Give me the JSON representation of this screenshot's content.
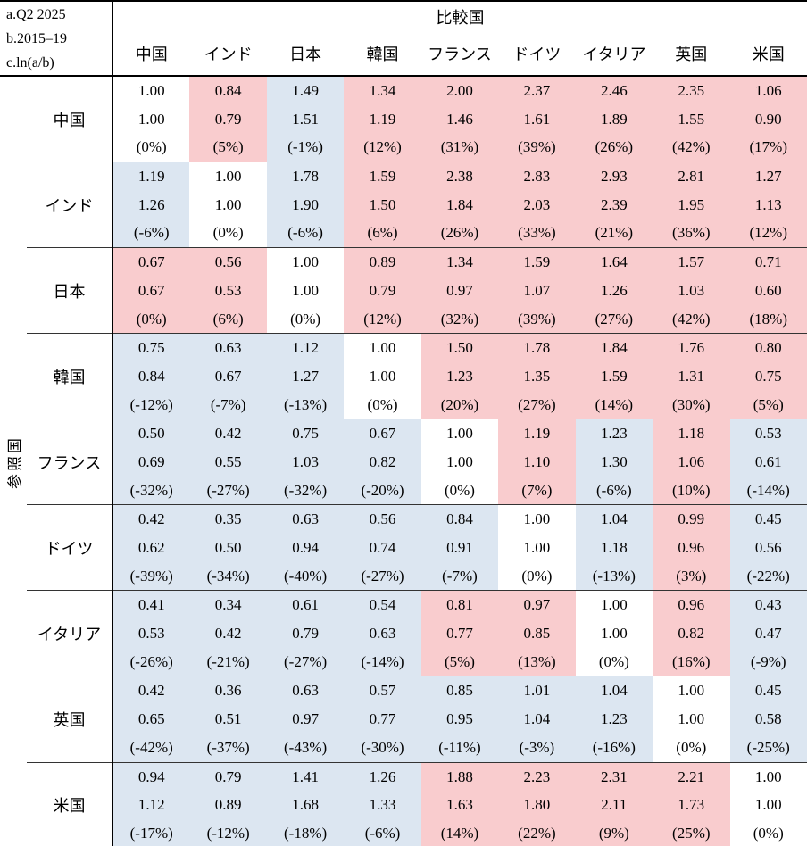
{
  "header": {
    "corner_lines": [
      "a.Q2 2025",
      "b.2015–19",
      "c.ln(a/b)"
    ],
    "comparison_label": "比較国",
    "reference_label": "参照国",
    "columns": [
      "中国",
      "インド",
      "日本",
      "韓国",
      "フランス",
      "ドイツ",
      "イタリア",
      "英国",
      "米国"
    ]
  },
  "colors": {
    "positive": "#F9CCCE",
    "negative": "#DCE6F1",
    "neutral": "#FFFFFF",
    "border": "#000000"
  },
  "rows": [
    {
      "label": "中国",
      "cells": [
        {
          "a": "1.00",
          "b": "1.00",
          "c": "(0%)",
          "bg": "w"
        },
        {
          "a": "0.84",
          "b": "0.79",
          "c": "(5%)",
          "bg": "p"
        },
        {
          "a": "1.49",
          "b": "1.51",
          "c": "(-1%)",
          "bg": "n"
        },
        {
          "a": "1.34",
          "b": "1.19",
          "c": "(12%)",
          "bg": "p"
        },
        {
          "a": "2.00",
          "b": "1.46",
          "c": "(31%)",
          "bg": "p"
        },
        {
          "a": "2.37",
          "b": "1.61",
          "c": "(39%)",
          "bg": "p"
        },
        {
          "a": "2.46",
          "b": "1.89",
          "c": "(26%)",
          "bg": "p"
        },
        {
          "a": "2.35",
          "b": "1.55",
          "c": "(42%)",
          "bg": "p"
        },
        {
          "a": "1.06",
          "b": "0.90",
          "c": "(17%)",
          "bg": "p"
        }
      ]
    },
    {
      "label": "インド",
      "cells": [
        {
          "a": "1.19",
          "b": "1.26",
          "c": "(-6%)",
          "bg": "n"
        },
        {
          "a": "1.00",
          "b": "1.00",
          "c": "(0%)",
          "bg": "w"
        },
        {
          "a": "1.78",
          "b": "1.90",
          "c": "(-6%)",
          "bg": "n"
        },
        {
          "a": "1.59",
          "b": "1.50",
          "c": "(6%)",
          "bg": "p"
        },
        {
          "a": "2.38",
          "b": "1.84",
          "c": "(26%)",
          "bg": "p"
        },
        {
          "a": "2.83",
          "b": "2.03",
          "c": "(33%)",
          "bg": "p"
        },
        {
          "a": "2.93",
          "b": "2.39",
          "c": "(21%)",
          "bg": "p"
        },
        {
          "a": "2.81",
          "b": "1.95",
          "c": "(36%)",
          "bg": "p"
        },
        {
          "a": "1.27",
          "b": "1.13",
          "c": "(12%)",
          "bg": "p"
        }
      ]
    },
    {
      "label": "日本",
      "cells": [
        {
          "a": "0.67",
          "b": "0.67",
          "c": "(0%)",
          "bg": "p"
        },
        {
          "a": "0.56",
          "b": "0.53",
          "c": "(6%)",
          "bg": "p"
        },
        {
          "a": "1.00",
          "b": "1.00",
          "c": "(0%)",
          "bg": "w"
        },
        {
          "a": "0.89",
          "b": "0.79",
          "c": "(12%)",
          "bg": "p"
        },
        {
          "a": "1.34",
          "b": "0.97",
          "c": "(32%)",
          "bg": "p"
        },
        {
          "a": "1.59",
          "b": "1.07",
          "c": "(39%)",
          "bg": "p"
        },
        {
          "a": "1.64",
          "b": "1.26",
          "c": "(27%)",
          "bg": "p"
        },
        {
          "a": "1.57",
          "b": "1.03",
          "c": "(42%)",
          "bg": "p"
        },
        {
          "a": "0.71",
          "b": "0.60",
          "c": "(18%)",
          "bg": "p"
        }
      ]
    },
    {
      "label": "韓国",
      "cells": [
        {
          "a": "0.75",
          "b": "0.84",
          "c": "(-12%)",
          "bg": "n"
        },
        {
          "a": "0.63",
          "b": "0.67",
          "c": "(-7%)",
          "bg": "n"
        },
        {
          "a": "1.12",
          "b": "1.27",
          "c": "(-13%)",
          "bg": "n"
        },
        {
          "a": "1.00",
          "b": "1.00",
          "c": "(0%)",
          "bg": "w"
        },
        {
          "a": "1.50",
          "b": "1.23",
          "c": "(20%)",
          "bg": "p"
        },
        {
          "a": "1.78",
          "b": "1.35",
          "c": "(27%)",
          "bg": "p"
        },
        {
          "a": "1.84",
          "b": "1.59",
          "c": "(14%)",
          "bg": "p"
        },
        {
          "a": "1.76",
          "b": "1.31",
          "c": "(30%)",
          "bg": "p"
        },
        {
          "a": "0.80",
          "b": "0.75",
          "c": "(5%)",
          "bg": "p"
        }
      ]
    },
    {
      "label": "フランス",
      "cells": [
        {
          "a": "0.50",
          "b": "0.69",
          "c": "(-32%)",
          "bg": "n"
        },
        {
          "a": "0.42",
          "b": "0.55",
          "c": "(-27%)",
          "bg": "n"
        },
        {
          "a": "0.75",
          "b": "1.03",
          "c": "(-32%)",
          "bg": "n"
        },
        {
          "a": "0.67",
          "b": "0.82",
          "c": "(-20%)",
          "bg": "n"
        },
        {
          "a": "1.00",
          "b": "1.00",
          "c": "(0%)",
          "bg": "w"
        },
        {
          "a": "1.19",
          "b": "1.10",
          "c": "(7%)",
          "bg": "p"
        },
        {
          "a": "1.23",
          "b": "1.30",
          "c": "(-6%)",
          "bg": "n"
        },
        {
          "a": "1.18",
          "b": "1.06",
          "c": "(10%)",
          "bg": "p"
        },
        {
          "a": "0.53",
          "b": "0.61",
          "c": "(-14%)",
          "bg": "n"
        }
      ]
    },
    {
      "label": "ドイツ",
      "cells": [
        {
          "a": "0.42",
          "b": "0.62",
          "c": "(-39%)",
          "bg": "n"
        },
        {
          "a": "0.35",
          "b": "0.50",
          "c": "(-34%)",
          "bg": "n"
        },
        {
          "a": "0.63",
          "b": "0.94",
          "c": "(-40%)",
          "bg": "n"
        },
        {
          "a": "0.56",
          "b": "0.74",
          "c": "(-27%)",
          "bg": "n"
        },
        {
          "a": "0.84",
          "b": "0.91",
          "c": "(-7%)",
          "bg": "n"
        },
        {
          "a": "1.00",
          "b": "1.00",
          "c": "(0%)",
          "bg": "w"
        },
        {
          "a": "1.04",
          "b": "1.18",
          "c": "(-13%)",
          "bg": "n"
        },
        {
          "a": "0.99",
          "b": "0.96",
          "c": "(3%)",
          "bg": "p"
        },
        {
          "a": "0.45",
          "b": "0.56",
          "c": "(-22%)",
          "bg": "n"
        }
      ]
    },
    {
      "label": "イタリア",
      "cells": [
        {
          "a": "0.41",
          "b": "0.53",
          "c": "(-26%)",
          "bg": "n"
        },
        {
          "a": "0.34",
          "b": "0.42",
          "c": "(-21%)",
          "bg": "n"
        },
        {
          "a": "0.61",
          "b": "0.79",
          "c": "(-27%)",
          "bg": "n"
        },
        {
          "a": "0.54",
          "b": "0.63",
          "c": "(-14%)",
          "bg": "n"
        },
        {
          "a": "0.81",
          "b": "0.77",
          "c": "(5%)",
          "bg": "p"
        },
        {
          "a": "0.97",
          "b": "0.85",
          "c": "(13%)",
          "bg": "p"
        },
        {
          "a": "1.00",
          "b": "1.00",
          "c": "(0%)",
          "bg": "w"
        },
        {
          "a": "0.96",
          "b": "0.82",
          "c": "(16%)",
          "bg": "p"
        },
        {
          "a": "0.43",
          "b": "0.47",
          "c": "(-9%)",
          "bg": "n"
        }
      ]
    },
    {
      "label": "英国",
      "cells": [
        {
          "a": "0.42",
          "b": "0.65",
          "c": "(-42%)",
          "bg": "n"
        },
        {
          "a": "0.36",
          "b": "0.51",
          "c": "(-37%)",
          "bg": "n"
        },
        {
          "a": "0.63",
          "b": "0.97",
          "c": "(-43%)",
          "bg": "n"
        },
        {
          "a": "0.57",
          "b": "0.77",
          "c": "(-30%)",
          "bg": "n"
        },
        {
          "a": "0.85",
          "b": "0.95",
          "c": "(-11%)",
          "bg": "n"
        },
        {
          "a": "1.01",
          "b": "1.04",
          "c": "(-3%)",
          "bg": "n"
        },
        {
          "a": "1.04",
          "b": "1.23",
          "c": "(-16%)",
          "bg": "n"
        },
        {
          "a": "1.00",
          "b": "1.00",
          "c": "(0%)",
          "bg": "w"
        },
        {
          "a": "0.45",
          "b": "0.58",
          "c": "(-25%)",
          "bg": "n"
        }
      ]
    },
    {
      "label": "米国",
      "cells": [
        {
          "a": "0.94",
          "b": "1.12",
          "c": "(-17%)",
          "bg": "n"
        },
        {
          "a": "0.79",
          "b": "0.89",
          "c": "(-12%)",
          "bg": "n"
        },
        {
          "a": "1.41",
          "b": "1.68",
          "c": "(-18%)",
          "bg": "n"
        },
        {
          "a": "1.26",
          "b": "1.33",
          "c": "(-6%)",
          "bg": "n"
        },
        {
          "a": "1.88",
          "b": "1.63",
          "c": "(14%)",
          "bg": "p"
        },
        {
          "a": "2.23",
          "b": "1.80",
          "c": "(22%)",
          "bg": "p"
        },
        {
          "a": "2.31",
          "b": "2.11",
          "c": "(9%)",
          "bg": "p"
        },
        {
          "a": "2.21",
          "b": "1.73",
          "c": "(25%)",
          "bg": "p"
        },
        {
          "a": "1.00",
          "b": "1.00",
          "c": "(0%)",
          "bg": "w"
        }
      ]
    }
  ],
  "chart_data": {
    "type": "table",
    "title": "",
    "row_axis_label": "参照国",
    "col_axis_label": "比較国",
    "value_definitions": [
      "a.Q2 2025",
      "b.2015–19",
      "c.ln(a/b)"
    ],
    "columns": [
      "中国",
      "インド",
      "日本",
      "韓国",
      "フランス",
      "ドイツ",
      "イタリア",
      "英国",
      "米国"
    ],
    "rows": [
      {
        "label": "中国",
        "a": [
          1.0,
          0.84,
          1.49,
          1.34,
          2.0,
          2.37,
          2.46,
          2.35,
          1.06
        ],
        "b": [
          1.0,
          0.79,
          1.51,
          1.19,
          1.46,
          1.61,
          1.89,
          1.55,
          0.9
        ],
        "c_pct": [
          0,
          5,
          -1,
          12,
          31,
          39,
          26,
          42,
          17
        ]
      },
      {
        "label": "インド",
        "a": [
          1.19,
          1.0,
          1.78,
          1.59,
          2.38,
          2.83,
          2.93,
          2.81,
          1.27
        ],
        "b": [
          1.26,
          1.0,
          1.9,
          1.5,
          1.84,
          2.03,
          2.39,
          1.95,
          1.13
        ],
        "c_pct": [
          -6,
          0,
          -6,
          6,
          26,
          33,
          21,
          36,
          12
        ]
      },
      {
        "label": "日本",
        "a": [
          0.67,
          0.56,
          1.0,
          0.89,
          1.34,
          1.59,
          1.64,
          1.57,
          0.71
        ],
        "b": [
          0.67,
          0.53,
          1.0,
          0.79,
          0.97,
          1.07,
          1.26,
          1.03,
          0.6
        ],
        "c_pct": [
          0,
          6,
          0,
          12,
          32,
          39,
          27,
          42,
          18
        ]
      },
      {
        "label": "韓国",
        "a": [
          0.75,
          0.63,
          1.12,
          1.0,
          1.5,
          1.78,
          1.84,
          1.76,
          0.8
        ],
        "b": [
          0.84,
          0.67,
          1.27,
          1.0,
          1.23,
          1.35,
          1.59,
          1.31,
          0.75
        ],
        "c_pct": [
          -12,
          -7,
          -13,
          0,
          20,
          27,
          14,
          30,
          5
        ]
      },
      {
        "label": "フランス",
        "a": [
          0.5,
          0.42,
          0.75,
          0.67,
          1.0,
          1.19,
          1.23,
          1.18,
          0.53
        ],
        "b": [
          0.69,
          0.55,
          1.03,
          0.82,
          1.0,
          1.1,
          1.3,
          1.06,
          0.61
        ],
        "c_pct": [
          -32,
          -27,
          -32,
          -20,
          0,
          7,
          -6,
          10,
          -14
        ]
      },
      {
        "label": "ドイツ",
        "a": [
          0.42,
          0.35,
          0.63,
          0.56,
          0.84,
          1.0,
          1.04,
          0.99,
          0.45
        ],
        "b": [
          0.62,
          0.5,
          0.94,
          0.74,
          0.91,
          1.0,
          1.18,
          0.96,
          0.56
        ],
        "c_pct": [
          -39,
          -34,
          -40,
          -27,
          -7,
          0,
          -13,
          3,
          -22
        ]
      },
      {
        "label": "イタリア",
        "a": [
          0.41,
          0.34,
          0.61,
          0.54,
          0.81,
          0.97,
          1.0,
          0.96,
          0.43
        ],
        "b": [
          0.53,
          0.42,
          0.79,
          0.63,
          0.77,
          0.85,
          1.0,
          0.82,
          0.47
        ],
        "c_pct": [
          -26,
          -21,
          -27,
          -14,
          5,
          13,
          0,
          16,
          -9
        ]
      },
      {
        "label": "英国",
        "a": [
          0.42,
          0.36,
          0.63,
          0.57,
          0.85,
          1.01,
          1.04,
          1.0,
          0.45
        ],
        "b": [
          0.65,
          0.51,
          0.97,
          0.77,
          0.95,
          1.04,
          1.23,
          1.0,
          0.58
        ],
        "c_pct": [
          -42,
          -37,
          -43,
          -30,
          -11,
          -3,
          -16,
          0,
          -25
        ]
      },
      {
        "label": "米国",
        "a": [
          0.94,
          0.79,
          1.41,
          1.26,
          1.88,
          2.23,
          2.31,
          2.21,
          1.0
        ],
        "b": [
          1.12,
          0.89,
          1.68,
          1.33,
          1.63,
          1.8,
          2.11,
          1.73,
          1.0
        ],
        "c_pct": [
          -17,
          -12,
          -18,
          -6,
          14,
          22,
          9,
          25,
          0
        ]
      }
    ],
    "cell_color_rule": "pink = positive c, blue = negative c, white = diagonal (0%)",
    "legend_position": "none",
    "grid": "horizontal separators between reference-country row groups"
  }
}
